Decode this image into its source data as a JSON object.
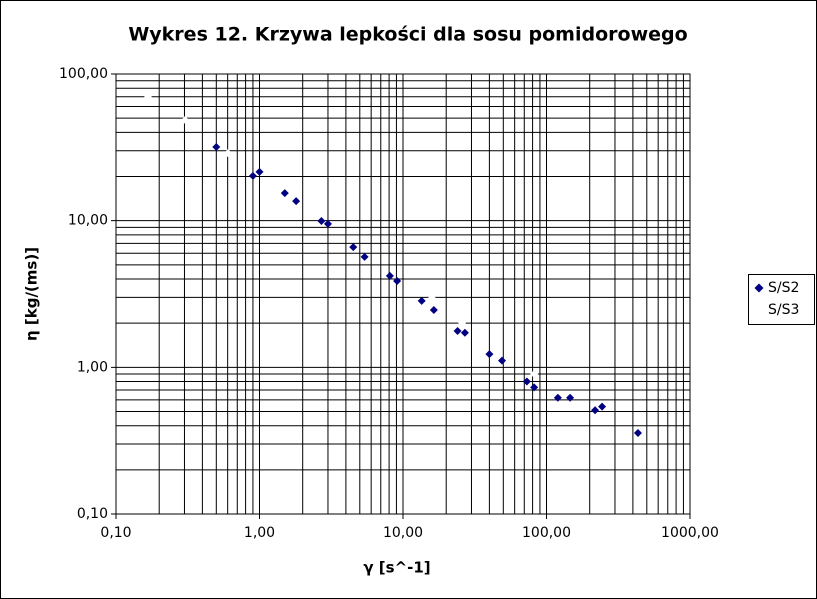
{
  "chart_data": {
    "type": "scatter",
    "title": "Wykres 12. Krzywa lepkości dla sosu pomidorowego",
    "xlabel": "γ [s^-1]",
    "ylabel": "η [kg/(ms)]",
    "xscale": "log",
    "yscale": "log",
    "grid": true,
    "legend": "right",
    "xlim": [
      0.1,
      1000
    ],
    "ylim": [
      0.1,
      100
    ],
    "xticks": [
      {
        "value": 0.1,
        "label": "0,10"
      },
      {
        "value": 1,
        "label": "1,00"
      },
      {
        "value": 10,
        "label": "10,00"
      },
      {
        "value": 100,
        "label": "100,00"
      },
      {
        "value": 1000,
        "label": "1000,00"
      }
    ],
    "yticks": [
      {
        "value": 0.1,
        "label": "0,10"
      },
      {
        "value": 1,
        "label": "1,00"
      },
      {
        "value": 10,
        "label": "10,00"
      },
      {
        "value": 100,
        "label": "100,00"
      }
    ],
    "xminorticks": [
      0.2,
      0.3,
      0.4,
      0.5,
      0.6,
      0.7,
      0.8,
      0.9,
      2,
      3,
      4,
      5,
      6,
      7,
      8,
      9,
      20,
      30,
      40,
      50,
      60,
      70,
      80,
      90,
      200,
      300,
      400,
      500,
      600,
      700,
      800,
      900
    ],
    "yminorticks": [
      0.2,
      0.3,
      0.4,
      0.5,
      0.6,
      0.7,
      0.8,
      0.9,
      2,
      3,
      4,
      5,
      6,
      7,
      8,
      9,
      20,
      30,
      40,
      50,
      60,
      70,
      80,
      90
    ],
    "series": [
      {
        "name": "S/S2",
        "color": "#000080",
        "x": [
          0.5,
          0.9,
          1.0,
          1.5,
          1.8,
          2.7,
          3.0,
          4.5,
          5.4,
          8.1,
          9.1,
          13.5,
          16.4,
          24,
          27,
          40,
          49,
          73,
          82,
          120,
          146,
          218,
          244,
          434
        ],
        "values": [
          31.8,
          20.2,
          21.5,
          15.4,
          13.6,
          9.95,
          9.5,
          6.6,
          5.66,
          4.2,
          3.88,
          2.84,
          2.46,
          1.77,
          1.72,
          1.23,
          1.11,
          0.8,
          0.73,
          0.62,
          0.62,
          0.51,
          0.54,
          0.357
        ]
      },
      {
        "name": "S/S3",
        "color": "#ffffff",
        "x": [
          0.167,
          0.303,
          0.603,
          15.9,
          25.8,
          82
        ],
        "values": [
          69.7,
          48.6,
          28.9,
          2.97,
          2.01,
          0.9
        ]
      }
    ]
  }
}
